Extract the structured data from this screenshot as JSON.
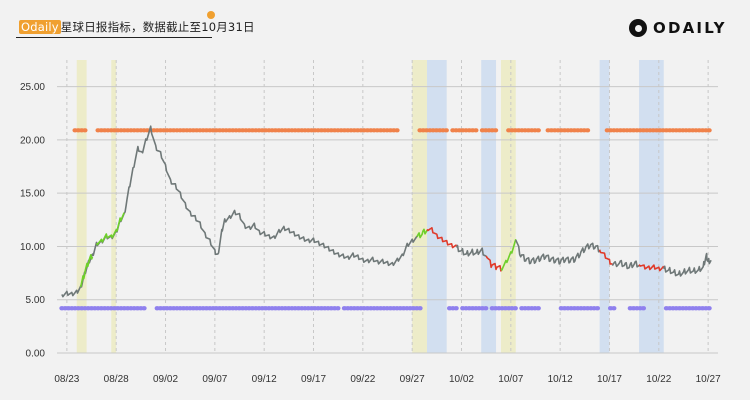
{
  "header": {
    "title_brand": "Odaily",
    "title_rest": "星球日报指标，数据截止至10月31日",
    "logo_text": "ODAILY",
    "logo_icon": "odaily-logo-icon"
  },
  "colors": {
    "background": "#f2f2f2",
    "grid": "#c8c8c8",
    "line_neutral": "#6f7878",
    "line_green": "#6ed02a",
    "line_red": "#e03a2a",
    "orange_dots": "#f0824a",
    "purple_dots": "#8f80ee",
    "yellow_band": "#ecebc2",
    "blue_band": "#cddcf0"
  },
  "chart_data": {
    "type": "line",
    "title": "",
    "xlabel": "",
    "ylabel": "",
    "x_start": "08-22",
    "x_end": "10-28",
    "ylim": [
      0,
      27.5
    ],
    "y_ticks": [
      "0.00",
      "5.00",
      "10.00",
      "15.00",
      "20.00",
      "25.00"
    ],
    "x_ticks": [
      {
        "date": "08-23",
        "label": "08/23"
      },
      {
        "date": "08-28",
        "label": "08/28"
      },
      {
        "date": "09-02",
        "label": "09/02"
      },
      {
        "date": "09-07",
        "label": "09/07"
      },
      {
        "date": "09-12",
        "label": "09/12"
      },
      {
        "date": "09-17",
        "label": "09/17"
      },
      {
        "date": "09-22",
        "label": "09/22"
      },
      {
        "date": "09-27",
        "label": "09/27"
      },
      {
        "date": "10-02",
        "label": "10/02"
      },
      {
        "date": "10-07",
        "label": "10/07"
      },
      {
        "date": "10-12",
        "label": "10/12"
      },
      {
        "date": "10-17",
        "label": "10/17"
      },
      {
        "date": "10-22",
        "label": "10/22"
      },
      {
        "date": "10-27",
        "label": "10/27"
      }
    ],
    "grid": "vertical dashed at date ticks, horizontal solid at value ticks",
    "highlight_bands": [
      {
        "start": "08-24",
        "end": "08-25",
        "color": "yellow"
      },
      {
        "start": "08-27.5",
        "end": "08-28",
        "color": "yellow"
      },
      {
        "start": "09-27",
        "end": "09-28.5",
        "color": "yellow"
      },
      {
        "start": "09-28.5",
        "end": "09-30.5",
        "color": "blue"
      },
      {
        "start": "10-04",
        "end": "10-05.5",
        "color": "blue"
      },
      {
        "start": "10-06",
        "end": "10-07.5",
        "color": "yellow"
      },
      {
        "start": "10-16",
        "end": "10-17",
        "color": "blue"
      },
      {
        "start": "10-20",
        "end": "10-22.5",
        "color": "blue"
      }
    ],
    "series": [
      {
        "color": "neutral",
        "points": [
          [
            "08-22.5",
            5.5
          ],
          [
            "08-23",
            5.7
          ],
          [
            "08-23.5",
            5.6
          ],
          [
            "08-24",
            5.8
          ],
          [
            "08-24.4",
            6.2
          ],
          [
            "08-24.8",
            7.5
          ],
          [
            "08-25.2",
            8.6
          ],
          [
            "08-25.6",
            9.2
          ],
          [
            "08-26",
            10.3
          ],
          [
            "08-26.5",
            10.5
          ],
          [
            "08-27",
            11.0
          ],
          [
            "08-27.5",
            10.9
          ],
          [
            "08-28",
            11.4
          ],
          [
            "08-28.4",
            12.5
          ],
          [
            "08-28.8",
            13.0
          ],
          [
            "08-29.3",
            15.5
          ],
          [
            "08-29.7",
            17.3
          ],
          [
            "08-30.2",
            19.3
          ],
          [
            "08-30.6",
            18.8
          ],
          [
            "08-31",
            20.0
          ],
          [
            "08-31.5",
            21.2
          ],
          [
            "09-01",
            19.4
          ],
          [
            "09-01.5",
            18.8
          ],
          [
            "09-02",
            17.6
          ],
          [
            "09-02.5",
            16.2
          ],
          [
            "09-03",
            15.8
          ],
          [
            "09-03.5",
            15.0
          ],
          [
            "09-04",
            14.0
          ],
          [
            "09-04.5",
            13.2
          ],
          [
            "09-05",
            12.8
          ],
          [
            "09-05.5",
            12.2
          ],
          [
            "09-06",
            11.2
          ],
          [
            "09-06.5",
            10.6
          ],
          [
            "09-07",
            9.6
          ],
          [
            "09-07.3",
            9.2
          ],
          [
            "09-07.7",
            11.5
          ],
          [
            "09-08",
            12.5
          ],
          [
            "09-08.5",
            12.8
          ],
          [
            "09-09",
            13.3
          ],
          [
            "09-09.5",
            13.0
          ],
          [
            "09-10",
            12.0
          ],
          [
            "09-10.5",
            11.8
          ],
          [
            "09-11",
            12.1
          ],
          [
            "09-11.5",
            11.4
          ],
          [
            "09-12",
            11.3
          ],
          [
            "09-12.5",
            11.0
          ],
          [
            "09-13",
            10.9
          ],
          [
            "09-13.5",
            11.5
          ],
          [
            "09-14",
            11.8
          ],
          [
            "09-14.5",
            11.6
          ],
          [
            "09-15",
            11.3
          ],
          [
            "09-15.5",
            11.0
          ],
          [
            "09-16",
            10.8
          ],
          [
            "09-16.5",
            10.6
          ],
          [
            "09-17",
            10.7
          ],
          [
            "09-17.5",
            10.4
          ],
          [
            "09-18",
            10.2
          ],
          [
            "09-18.5",
            9.9
          ],
          [
            "09-19",
            9.6
          ],
          [
            "09-19.5",
            9.3
          ],
          [
            "09-20",
            9.2
          ],
          [
            "09-20.5",
            9.0
          ],
          [
            "09-21",
            9.3
          ],
          [
            "09-21.5",
            9.1
          ],
          [
            "09-22",
            8.8
          ],
          [
            "09-22.5",
            8.7
          ],
          [
            "09-23",
            8.9
          ],
          [
            "09-23.5",
            8.6
          ],
          [
            "09-24",
            8.7
          ],
          [
            "09-24.5",
            8.5
          ],
          [
            "09-25",
            8.4
          ],
          [
            "09-25.5",
            8.8
          ],
          [
            "09-26",
            9.2
          ],
          [
            "09-26.5",
            10.2
          ],
          [
            "09-27",
            10.6
          ],
          [
            "09-27.5",
            10.9
          ]
        ]
      },
      {
        "color": "green",
        "points": [
          [
            "08-24.4",
            6.2
          ],
          [
            "08-24.8",
            7.5
          ],
          [
            "08-25.2",
            8.6
          ],
          [
            "08-25.6",
            9.2
          ]
        ]
      },
      {
        "color": "green",
        "points": [
          [
            "08-26",
            10.3
          ],
          [
            "08-26.5",
            10.5
          ],
          [
            "08-27",
            11.0
          ],
          [
            "08-27.5",
            10.9
          ],
          [
            "08-28",
            11.4
          ],
          [
            "08-28.4",
            12.5
          ],
          [
            "08-28.8",
            13.0
          ]
        ]
      },
      {
        "color": "green",
        "points": [
          [
            "09-27.5",
            10.9
          ],
          [
            "09-28",
            11.2
          ],
          [
            "09-28.5",
            11.6
          ]
        ]
      },
      {
        "color": "red",
        "points": [
          [
            "09-28.5",
            11.6
          ],
          [
            "09-29",
            11.5
          ],
          [
            "09-29.5",
            10.9
          ],
          [
            "09-30",
            10.6
          ],
          [
            "09-30.5",
            10.3
          ],
          [
            "10-01",
            10.0
          ],
          [
            "10-01.5",
            9.9
          ]
        ]
      },
      {
        "color": "neutral",
        "points": [
          [
            "10-01.5",
            9.9
          ],
          [
            "10-02",
            9.6
          ],
          [
            "10-02.5",
            9.3
          ],
          [
            "10-03",
            9.5
          ],
          [
            "10-03.5",
            9.4
          ],
          [
            "10-04",
            9.7
          ],
          [
            "10-04.5",
            9.1
          ]
        ]
      },
      {
        "color": "red",
        "points": [
          [
            "10-04.5",
            9.1
          ],
          [
            "10-05",
            8.3
          ],
          [
            "10-05.5",
            8.1
          ],
          [
            "10-06",
            7.9
          ]
        ]
      },
      {
        "color": "green",
        "points": [
          [
            "10-06",
            7.9
          ],
          [
            "10-06.5",
            8.6
          ],
          [
            "10-07",
            9.4
          ],
          [
            "10-07.5",
            10.6
          ]
        ]
      },
      {
        "color": "neutral",
        "points": [
          [
            "10-07.5",
            10.6
          ],
          [
            "10-08",
            9.2
          ],
          [
            "10-08.5",
            8.8
          ],
          [
            "10-09",
            8.6
          ],
          [
            "10-09.5",
            8.7
          ],
          [
            "10-10",
            8.9
          ],
          [
            "10-10.5",
            9.1
          ],
          [
            "10-11",
            8.8
          ],
          [
            "10-11.5",
            8.7
          ],
          [
            "10-12",
            8.6
          ],
          [
            "10-12.5",
            8.8
          ],
          [
            "10-13",
            8.7
          ],
          [
            "10-13.5",
            8.8
          ],
          [
            "10-14",
            9.3
          ],
          [
            "10-14.5",
            9.8
          ],
          [
            "10-15",
            10.1
          ],
          [
            "10-15.5",
            10.0
          ],
          [
            "10-16",
            9.7
          ]
        ]
      },
      {
        "color": "red",
        "points": [
          [
            "10-16",
            9.7
          ],
          [
            "10-16.5",
            9.2
          ],
          [
            "10-17",
            8.6
          ],
          [
            "10-17.3",
            8.2
          ]
        ]
      },
      {
        "color": "neutral",
        "points": [
          [
            "10-17.3",
            8.2
          ],
          [
            "10-18",
            8.5
          ],
          [
            "10-18.5",
            8.3
          ],
          [
            "10-19",
            8.1
          ],
          [
            "10-19.5",
            8.4
          ],
          [
            "10-20",
            8.3
          ]
        ]
      },
      {
        "color": "red",
        "points": [
          [
            "10-20",
            8.3
          ],
          [
            "10-20.5",
            8.0
          ],
          [
            "10-21",
            7.9
          ],
          [
            "10-21.5",
            8.0
          ],
          [
            "10-22",
            7.8
          ],
          [
            "10-22.5",
            7.9
          ]
        ]
      },
      {
        "color": "neutral",
        "points": [
          [
            "10-22.5",
            7.9
          ],
          [
            "10-23",
            7.8
          ],
          [
            "10-23.5",
            7.6
          ],
          [
            "10-24",
            7.4
          ],
          [
            "10-24.5",
            7.6
          ],
          [
            "10-25",
            7.8
          ],
          [
            "10-25.5",
            7.7
          ],
          [
            "10-26",
            7.8
          ],
          [
            "10-26.5",
            8.1
          ],
          [
            "10-26.8",
            9.2
          ],
          [
            "10-27",
            8.6
          ],
          [
            "10-27.3",
            8.7
          ]
        ]
      }
    ],
    "dot_rows": [
      {
        "color": "orange",
        "y": 20.9,
        "gaps": [
          [
            "08-22",
            "08-23.5"
          ],
          [
            "08-25",
            "08-26"
          ],
          [
            "09-25.5",
            "09-27.5"
          ],
          [
            "09-30.5",
            "10-01"
          ],
          [
            "10-03.5",
            "10-04"
          ],
          [
            "10-05.5",
            "10-06.5"
          ],
          [
            "10-10",
            "10-10.5"
          ],
          [
            "10-15",
            "10-16.5"
          ],
          [
            "10-27.4",
            "10-29"
          ]
        ]
      },
      {
        "color": "purple",
        "y": 4.2,
        "gaps": [
          [
            "08-22",
            "08-22.4"
          ],
          [
            "08-31",
            "09-01"
          ],
          [
            "09-19.5",
            "09-20"
          ],
          [
            "09-28",
            "09-30.5"
          ],
          [
            "10-01.5",
            "10-02"
          ],
          [
            "10-04.5",
            "10-05"
          ],
          [
            "10-07.5",
            "10-08"
          ],
          [
            "10-10",
            "10-12"
          ],
          [
            "10-16",
            "10-17"
          ],
          [
            "10-17.5",
            "10-19"
          ],
          [
            "10-20.5",
            "10-22.5"
          ],
          [
            "10-27.4",
            "10-29"
          ]
        ]
      }
    ]
  }
}
